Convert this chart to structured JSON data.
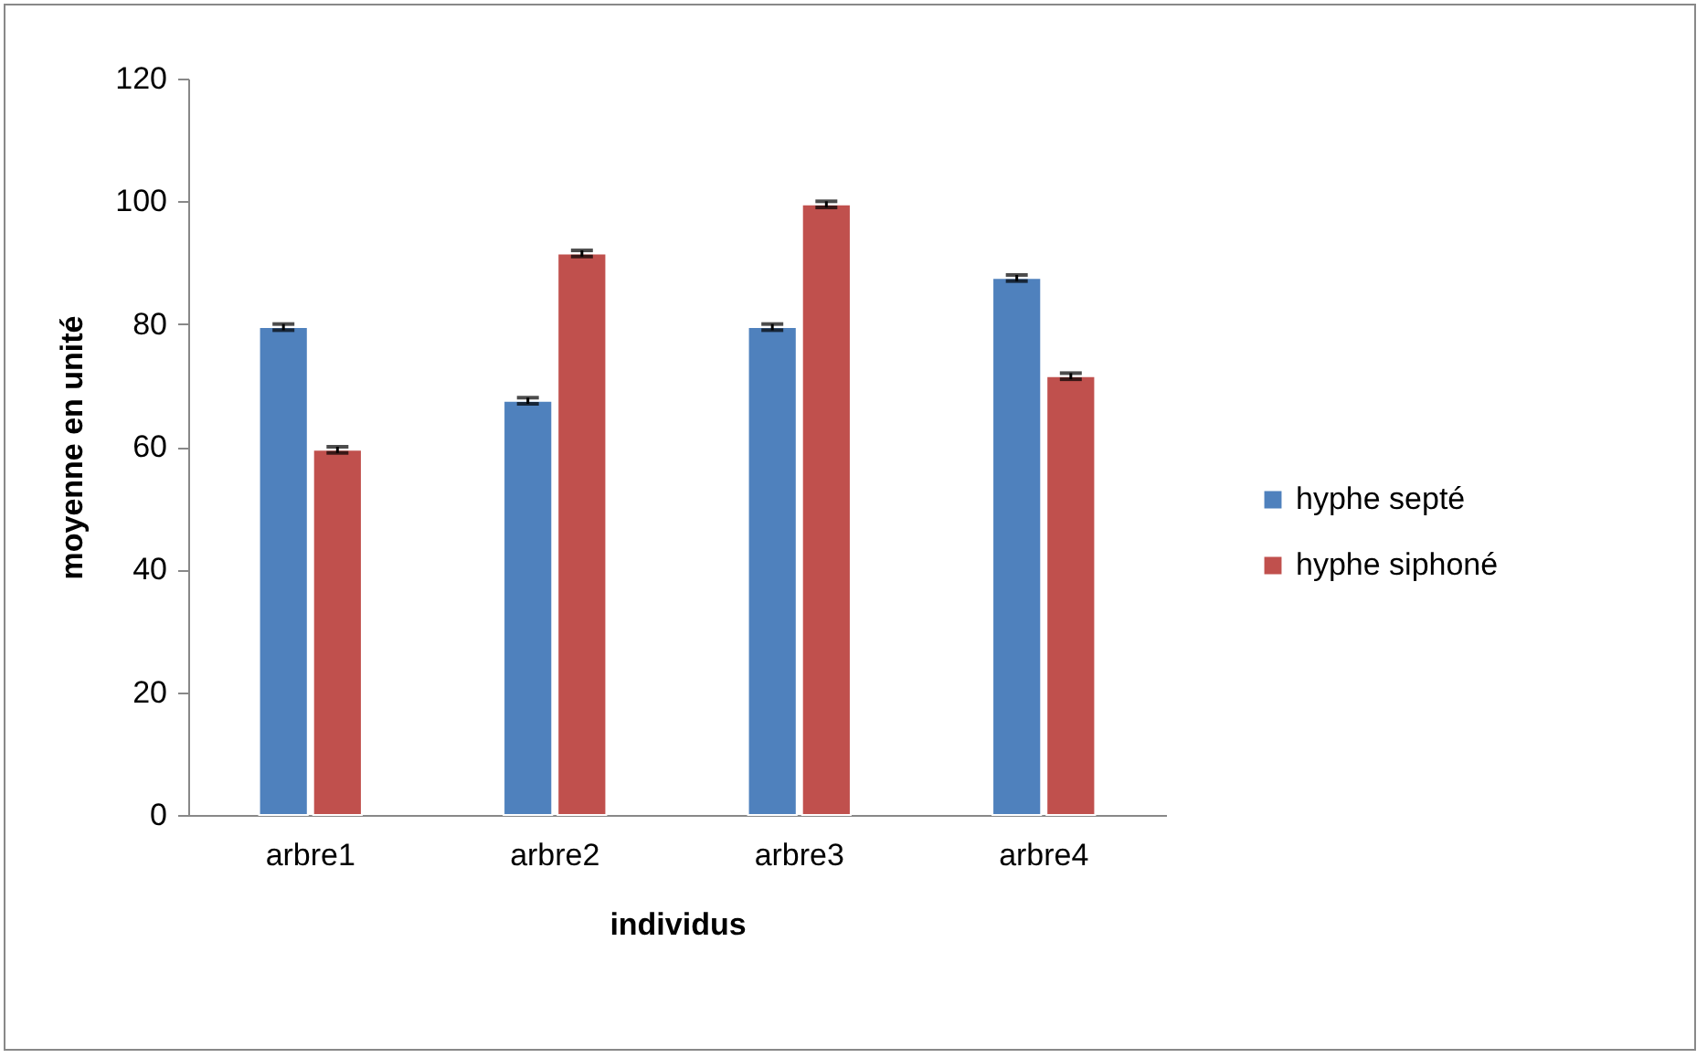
{
  "chart_data": {
    "type": "bar",
    "xlabel": "individus",
    "ylabel": "moyenne en unité",
    "categories": [
      "arbre1",
      "arbre2",
      "arbre3",
      "arbre4"
    ],
    "series": [
      {
        "name": "hyphe septé",
        "color": "#4f81bd",
        "values": [
          79.5,
          67.5,
          79.5,
          87.5
        ],
        "errors": [
          0.5,
          0.5,
          0.5,
          0.5
        ]
      },
      {
        "name": "hyphe siphoné",
        "color": "#c0504d",
        "values": [
          59.5,
          91.5,
          99.5,
          71.5
        ],
        "errors": [
          0.5,
          0.5,
          0.5,
          0.5
        ]
      }
    ],
    "ylim": [
      0,
      120
    ],
    "yticks": [
      0,
      20,
      40,
      60,
      80,
      100,
      120
    ],
    "grid": false,
    "legend": "right"
  }
}
